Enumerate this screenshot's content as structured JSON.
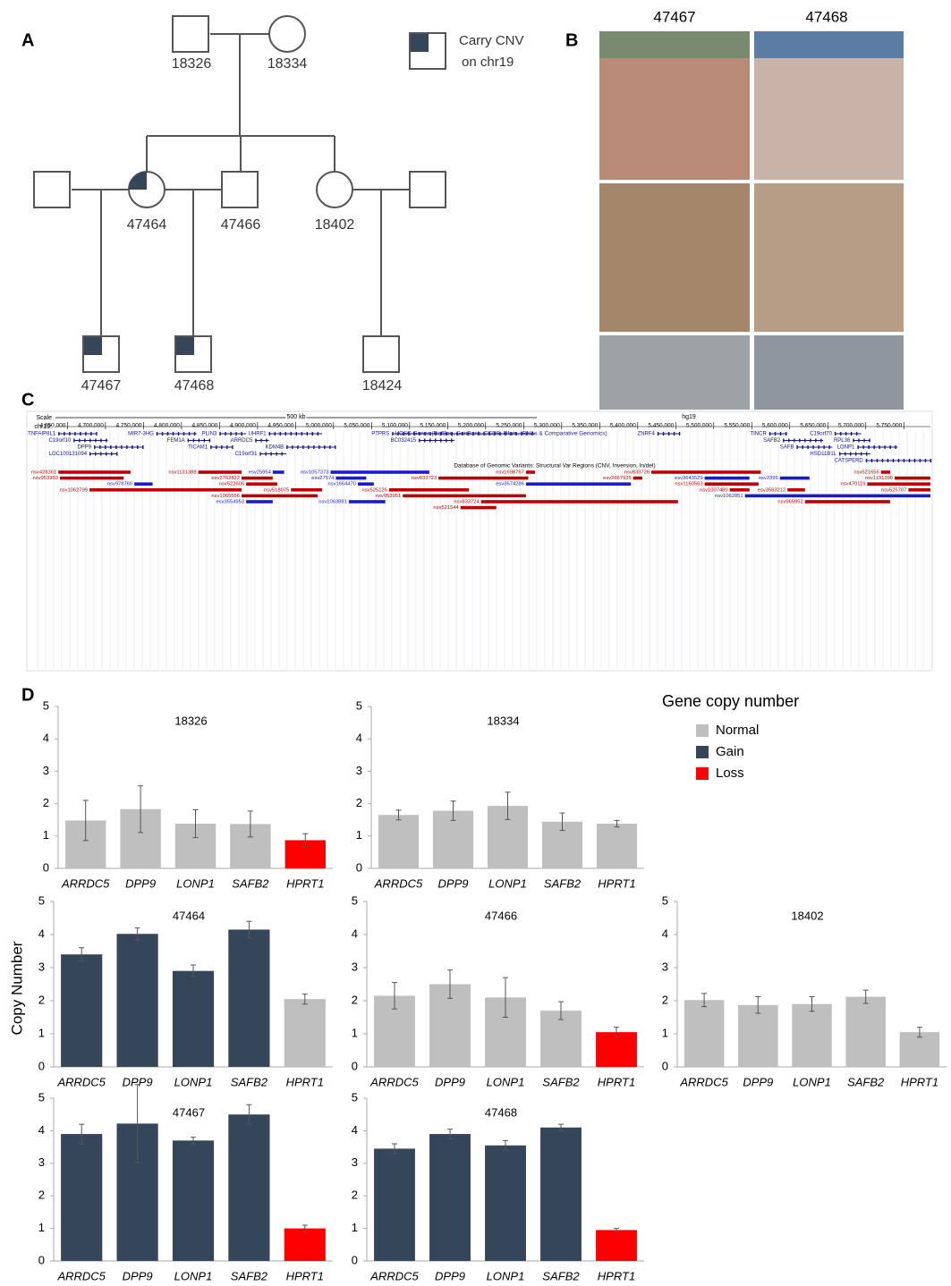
{
  "panel_labels": [
    "A",
    "B",
    "C",
    "D"
  ],
  "pedigree": {
    "legend": [
      "Carry CNV",
      "on chr19"
    ],
    "individuals": [
      "18326",
      "18334",
      "47464",
      "47466",
      "18402",
      "47467",
      "47468",
      "18424"
    ]
  },
  "photos": {
    "subjects": [
      "47467",
      "47468"
    ]
  },
  "genome_browser": {
    "scale_label": "Scale",
    "chrom_label": "chr19:",
    "scale_bar": "500 kb",
    "assembly": "hg19",
    "xlim": [
      4606000,
      5785000
    ],
    "xticks": [
      {
        "value": 4650000,
        "label": "4,650,000"
      },
      {
        "value": 4700000,
        "label": "4,700,000"
      },
      {
        "value": 4750000,
        "label": "4,750,000"
      },
      {
        "value": 4800000,
        "label": "4,800,000"
      },
      {
        "value": 4850000,
        "label": "4,850,000"
      },
      {
        "value": 4900000,
        "label": "4,900,000"
      },
      {
        "value": 4950000,
        "label": "4,950,000"
      },
      {
        "value": 5000000,
        "label": "5,000,000"
      },
      {
        "value": 5050000,
        "label": "5,050,000"
      },
      {
        "value": 5100000,
        "label": "5,100,000"
      },
      {
        "value": 5150000,
        "label": "5,150,000"
      },
      {
        "value": 5200000,
        "label": "5,200,000"
      },
      {
        "value": 5250000,
        "label": "5,250,000"
      },
      {
        "value": 5300000,
        "label": "5,300,000"
      },
      {
        "value": 5350000,
        "label": "5,350,000"
      },
      {
        "value": 5400000,
        "label": "5,400,000"
      },
      {
        "value": 5450000,
        "label": "5,450,000"
      },
      {
        "value": 5500000,
        "label": "5,500,000"
      },
      {
        "value": 5550000,
        "label": "5,550,000"
      },
      {
        "value": 5600000,
        "label": "5,600,000"
      },
      {
        "value": 5650000,
        "label": "5,650,000"
      },
      {
        "value": 5700000,
        "label": "5,700,000"
      },
      {
        "value": 5750000,
        "label": "5,750,000"
      }
    ],
    "genes_track": "UCSC Genes (RefSeq, GenBank, CCDS, Rfam, tRNAs & Comparative Genomics)",
    "genes": [
      {
        "name": "TNFAIP8L1",
        "start": 4638000,
        "end": 4689000
      },
      {
        "name": "C19orf10",
        "start": 4658000,
        "end": 4703000
      },
      {
        "name": "DPP9",
        "start": 4685000,
        "end": 4750000
      },
      {
        "name": "LOC100131094",
        "start": 4679000,
        "end": 4715000
      },
      {
        "name": "MIR7-3HG",
        "start": 4767000,
        "end": 4820000
      },
      {
        "name": "FEM1A",
        "start": 4808000,
        "end": 4838000
      },
      {
        "name": "TICAM1",
        "start": 4838000,
        "end": 4867000
      },
      {
        "name": "PLIN3",
        "start": 4850000,
        "end": 4885000
      },
      {
        "name": "ARRDC5",
        "start": 4897000,
        "end": 4915000
      },
      {
        "name": "UHRF1",
        "start": 4915000,
        "end": 4985000
      },
      {
        "name": "C19orf31",
        "start": 4903000,
        "end": 4938000
      },
      {
        "name": "KDM4B",
        "start": 4938000,
        "end": 5003000
      },
      {
        "name": "PTPRS",
        "start": 5077000,
        "end": 5265000
      },
      {
        "name": "BC032415",
        "start": 5112000,
        "end": 5159000
      },
      {
        "name": "ZNRF4",
        "start": 5426000,
        "end": 5455000
      },
      {
        "name": "TINCR",
        "start": 5573000,
        "end": 5597000
      },
      {
        "name": "SAFB2",
        "start": 5591000,
        "end": 5644000
      },
      {
        "name": "SAFB",
        "start": 5609000,
        "end": 5656000
      },
      {
        "name": "C19orf70",
        "start": 5659000,
        "end": 5694000
      },
      {
        "name": "HSD11B1L",
        "start": 5665000,
        "end": 5706000
      },
      {
        "name": "RPL36",
        "start": 5683000,
        "end": 5706000
      },
      {
        "name": "LONP1",
        "start": 5689000,
        "end": 5742000
      },
      {
        "name": "CATSPERD",
        "start": 5700000,
        "end": 5785000
      }
    ],
    "variants_track": "Database of Genomic Variants: Structural Var Regions (CNV, Inversion, In/del)",
    "variants": [
      {
        "name": "nsv428361",
        "start": 4638000,
        "end": 4733000,
        "color": "#c00000"
      },
      {
        "name": "nsv953950",
        "start": 4640000,
        "end": 4724000,
        "color": "#c00000"
      },
      {
        "name": "nsv1131388",
        "start": 4822000,
        "end": 4879000,
        "color": "#c00000"
      },
      {
        "name": "esv2762822",
        "start": 4879000,
        "end": 4920000,
        "color": "#c00000"
      },
      {
        "name": "nsv1057373",
        "start": 4996000,
        "end": 5126000,
        "color": "#1a1ad0"
      },
      {
        "name": "esv27574",
        "start": 5003000,
        "end": 5043000,
        "color": "#1a1ad0"
      },
      {
        "name": "nsv833723",
        "start": 5138000,
        "end": 5256000,
        "color": "#c00000"
      },
      {
        "name": "nsv833726",
        "start": 5418000,
        "end": 5562000,
        "color": "#c00000"
      },
      {
        "name": "nsv2395",
        "start": 5587000,
        "end": 5626000,
        "color": "#1a1ad0"
      },
      {
        "name": "nsv521656",
        "start": 5720000,
        "end": 5732000,
        "color": "#c00000"
      },
      {
        "name": "nsv1131390",
        "start": 5738000,
        "end": 5785000,
        "color": "#c00000"
      },
      {
        "name": "nsv978760",
        "start": 4738000,
        "end": 4762000,
        "color": "#1a1ad0"
      },
      {
        "name": "nsv522605",
        "start": 4885000,
        "end": 4926000,
        "color": "#c00000"
      },
      {
        "name": "nsv518075",
        "start": 4944000,
        "end": 4985000,
        "color": "#c00000"
      },
      {
        "name": "nsv1664470",
        "start": 5032000,
        "end": 5053000,
        "color": "#1a1ad0"
      },
      {
        "name": "nsv1698767",
        "start": 5253000,
        "end": 5265000,
        "color": "#c00000"
      },
      {
        "name": "esv2667935",
        "start": 5394000,
        "end": 5406000,
        "color": "#c00000"
      },
      {
        "name": "esv3643529",
        "start": 5488000,
        "end": 5547000,
        "color": "#1a1ad0"
      },
      {
        "name": "esv3574286",
        "start": 5253000,
        "end": 5391000,
        "color": "#1a1ad0"
      },
      {
        "name": "nsv1160563",
        "start": 5488000,
        "end": 5559000,
        "color": "#c00000"
      },
      {
        "name": "esv3583212",
        "start": 5597000,
        "end": 5620000,
        "color": "#c00000"
      },
      {
        "name": "nsv470119",
        "start": 5702000,
        "end": 5785000,
        "color": "#c00000"
      },
      {
        "name": "nsv1062851",
        "start": 5541000,
        "end": 5785000,
        "color": "#1a1ad0"
      },
      {
        "name": "nsv525126",
        "start": 5073000,
        "end": 5178000,
        "color": "#c00000"
      },
      {
        "name": "nsv953951",
        "start": 5091000,
        "end": 5253000,
        "color": "#c00000"
      },
      {
        "name": "nsv1062799",
        "start": 4679000,
        "end": 4879000,
        "color": "#c00000"
      },
      {
        "name": "nsv1065556",
        "start": 4879000,
        "end": 4979000,
        "color": "#c00000"
      },
      {
        "name": "nsv833724",
        "start": 5194000,
        "end": 5453000,
        "color": "#c00000"
      },
      {
        "name": "esv3554953",
        "start": 4885000,
        "end": 4920000,
        "color": "#1a1ad0"
      },
      {
        "name": "nsv1007489",
        "start": 5521000,
        "end": 5547000,
        "color": "#c00000"
      },
      {
        "name": "nsv1063881",
        "start": 5020000,
        "end": 5068000,
        "color": "#1a1ad0"
      },
      {
        "name": "nsv525707",
        "start": 5756000,
        "end": 5785000,
        "color": "#c00000"
      },
      {
        "name": "nsv965952",
        "start": 5620000,
        "end": 5732000,
        "color": "#c00000"
      },
      {
        "name": "esv25954",
        "start": 4920000,
        "end": 4935000,
        "color": "#1a1ad0"
      },
      {
        "name": "nsv521544",
        "start": 5167000,
        "end": 5214000,
        "color": "#c00000"
      }
    ]
  },
  "copy_number": {
    "y_label": "Copy Number",
    "legend_title": "Gene copy number",
    "legend": [
      {
        "name": "Normal",
        "color": "#bfbfbf"
      },
      {
        "name": "Gain",
        "color": "#36465a"
      },
      {
        "name": "Loss",
        "color": "#ff0000"
      }
    ]
  },
  "chart_data": [
    {
      "type": "bar",
      "title": "18326",
      "categories": [
        "ARRDC5",
        "DPP9",
        "LONP1",
        "SAFB2",
        "HPRT1"
      ],
      "values": [
        1.48,
        1.83,
        1.38,
        1.37,
        0.87
      ],
      "errors": [
        0.62,
        0.72,
        0.43,
        0.4,
        0.2
      ],
      "colors": [
        "#bfbfbf",
        "#bfbfbf",
        "#bfbfbf",
        "#bfbfbf",
        "#ff0000"
      ],
      "ylim": [
        0,
        5
      ],
      "yticks": [
        0,
        1,
        2,
        3,
        4,
        5
      ]
    },
    {
      "type": "bar",
      "title": "18334",
      "categories": [
        "ARRDC5",
        "DPP9",
        "LONP1",
        "SAFB2",
        "HPRT1"
      ],
      "values": [
        1.65,
        1.78,
        1.93,
        1.44,
        1.38
      ],
      "errors": [
        0.15,
        0.3,
        0.42,
        0.27,
        0.1
      ],
      "colors": [
        "#bfbfbf",
        "#bfbfbf",
        "#bfbfbf",
        "#bfbfbf",
        "#bfbfbf"
      ],
      "ylim": [
        0,
        5
      ],
      "yticks": [
        0,
        1,
        2,
        3,
        4,
        5
      ]
    },
    {
      "type": "bar",
      "title": "47464",
      "categories": [
        "ARRDC5",
        "DPP9",
        "LONP1",
        "SAFB2",
        "HPRT1"
      ],
      "values": [
        3.4,
        4.02,
        2.9,
        4.15,
        2.05
      ],
      "errors": [
        0.2,
        0.18,
        0.18,
        0.25,
        0.15
      ],
      "colors": [
        "#36465a",
        "#36465a",
        "#36465a",
        "#36465a",
        "#bfbfbf"
      ],
      "ylim": [
        0,
        5
      ],
      "yticks": [
        0,
        1,
        2,
        3,
        4,
        5
      ]
    },
    {
      "type": "bar",
      "title": "47466",
      "categories": [
        "ARRDC5",
        "DPP9",
        "LONP1",
        "SAFB2",
        "HPRT1"
      ],
      "values": [
        2.15,
        2.5,
        2.1,
        1.7,
        1.05
      ],
      "errors": [
        0.4,
        0.43,
        0.6,
        0.27,
        0.15
      ],
      "colors": [
        "#bfbfbf",
        "#bfbfbf",
        "#bfbfbf",
        "#bfbfbf",
        "#ff0000"
      ],
      "ylim": [
        0,
        5
      ],
      "yticks": [
        0,
        1,
        2,
        3,
        4,
        5
      ]
    },
    {
      "type": "bar",
      "title": "18402",
      "categories": [
        "ARRDC5",
        "DPP9",
        "LONP1",
        "SAFB2",
        "HPRT1"
      ],
      "values": [
        2.02,
        1.87,
        1.9,
        2.12,
        1.05
      ],
      "errors": [
        0.2,
        0.25,
        0.22,
        0.2,
        0.15
      ],
      "colors": [
        "#bfbfbf",
        "#bfbfbf",
        "#bfbfbf",
        "#bfbfbf",
        "#bfbfbf"
      ],
      "ylim": [
        0,
        5
      ],
      "yticks": [
        0,
        1,
        2,
        3,
        4,
        5
      ]
    },
    {
      "type": "bar",
      "title": "47467",
      "categories": [
        "ARRDC5",
        "DPP9",
        "LONP1",
        "SAFB2",
        "HPRT1"
      ],
      "values": [
        3.9,
        4.22,
        3.7,
        4.5,
        1.0
      ],
      "errors": [
        0.3,
        1.2,
        0.1,
        0.3,
        0.1
      ],
      "colors": [
        "#36465a",
        "#36465a",
        "#36465a",
        "#36465a",
        "#ff0000"
      ],
      "ylim": [
        0,
        5
      ],
      "yticks": [
        0,
        1,
        2,
        3,
        4,
        5
      ]
    },
    {
      "type": "bar",
      "title": "47468",
      "categories": [
        "ARRDC5",
        "DPP9",
        "LONP1",
        "SAFB2",
        "HPRT1"
      ],
      "values": [
        3.45,
        3.9,
        3.55,
        4.1,
        0.95
      ],
      "errors": [
        0.15,
        0.15,
        0.15,
        0.1,
        0.05
      ],
      "colors": [
        "#36465a",
        "#36465a",
        "#36465a",
        "#36465a",
        "#ff0000"
      ],
      "ylim": [
        0,
        5
      ],
      "yticks": [
        0,
        1,
        2,
        3,
        4,
        5
      ]
    }
  ]
}
